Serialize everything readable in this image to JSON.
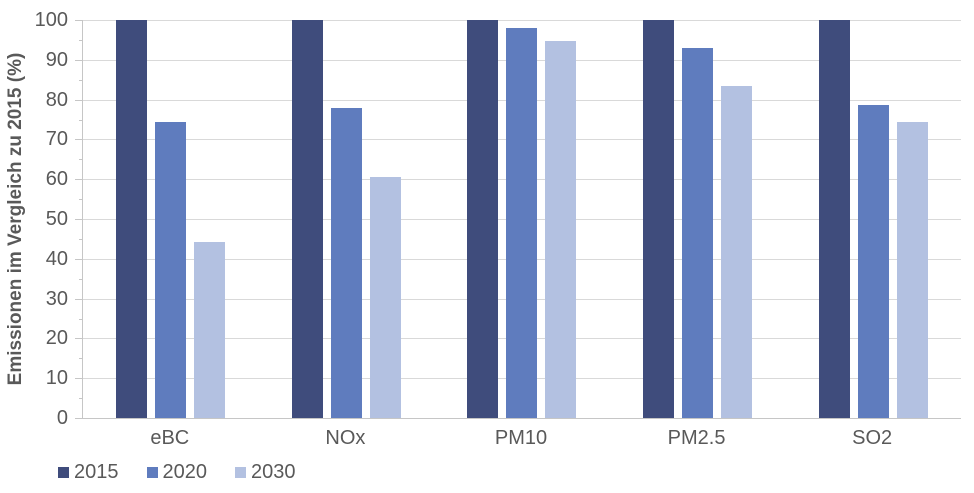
{
  "chart_data": {
    "type": "bar",
    "title": "",
    "xlabel": "",
    "ylabel": "Emissionen im Vergleich zu 2015 (%)",
    "categories": [
      "eBC",
      "NOx",
      "PM10",
      "PM2.5",
      "SO2"
    ],
    "series": [
      {
        "name": "2015",
        "color": "#3F4C7C",
        "values": [
          100,
          100,
          100,
          100,
          100
        ]
      },
      {
        "name": "2020",
        "color": "#5F7CBE",
        "values": [
          74.5,
          78,
          98,
          93,
          78.6
        ]
      },
      {
        "name": "2030",
        "color": "#B3C1E1",
        "values": [
          44.2,
          60.5,
          94.7,
          83.4,
          74.5
        ]
      }
    ],
    "ylim": [
      0,
      100
    ],
    "yticks": [
      0,
      10,
      20,
      30,
      40,
      50,
      60,
      70,
      80,
      90,
      100
    ],
    "minor_ticks": [
      5,
      15,
      25,
      35,
      45,
      55,
      65,
      75,
      85,
      95
    ],
    "grid": "horizontal",
    "legend_position": "bottom-left",
    "legend_labels": [
      "2015",
      "2020",
      "2030"
    ]
  },
  "colors": {
    "gridline": "#D9D9D9",
    "axis": "#C6C6C6",
    "text": "#595959"
  }
}
